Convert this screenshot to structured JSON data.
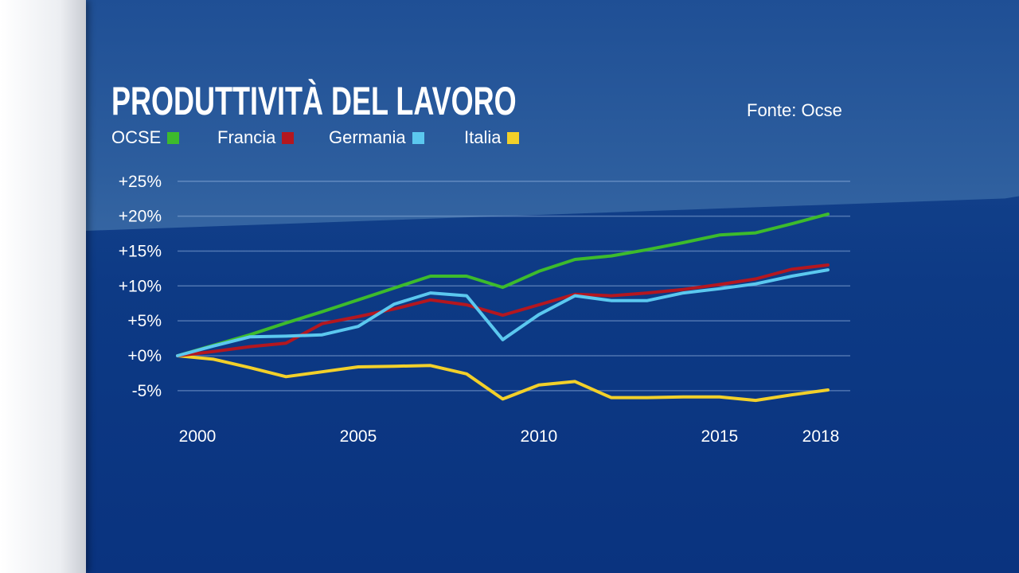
{
  "header": {
    "title": "PRODUTTIVITÀ DEL LAVORO",
    "source": "Fonte: Ocse"
  },
  "chart_data": {
    "type": "line",
    "title": "PRODUTTIVITÀ DEL LAVORO",
    "x": [
      2000,
      2001,
      2002,
      2003,
      2004,
      2005,
      2006,
      2007,
      2008,
      2009,
      2010,
      2011,
      2012,
      2013,
      2014,
      2015,
      2016,
      2017,
      2018
    ],
    "xticks": [
      {
        "v": 2000,
        "label": "2000"
      },
      {
        "v": 2005,
        "label": "2005"
      },
      {
        "v": 2010,
        "label": "2010"
      },
      {
        "v": 2015,
        "label": "2015"
      },
      {
        "v": 2018,
        "label": "2018"
      }
    ],
    "yticks": [
      {
        "v": 25,
        "label": "+25%"
      },
      {
        "v": 20,
        "label": "+20%"
      },
      {
        "v": 15,
        "label": "+15%"
      },
      {
        "v": 10,
        "label": "+10%"
      },
      {
        "v": 5,
        "label": "+5%"
      },
      {
        "v": 0,
        "label": "+0%"
      },
      {
        "v": -5,
        "label": "-5%"
      }
    ],
    "ylim": [
      -5,
      25
    ],
    "xlim": [
      2000,
      2018
    ],
    "grid": true,
    "legend_placement": "top-left",
    "series": [
      {
        "name": "OCSE",
        "color": "#3dbb2c",
        "values": [
          0,
          1.5,
          3.0,
          4.7,
          6.3,
          8.0,
          9.7,
          11.4,
          11.4,
          9.8,
          12.1,
          13.8,
          14.3,
          15.2,
          16.2,
          17.3,
          17.6,
          18.9,
          20.3
        ]
      },
      {
        "name": "Francia",
        "color": "#b4171f",
        "values": [
          0,
          0.6,
          1.3,
          1.8,
          4.6,
          5.6,
          6.7,
          8.0,
          7.3,
          5.8,
          7.3,
          8.8,
          8.6,
          9.0,
          9.5,
          10.2,
          11.0,
          12.4,
          13.0
        ]
      },
      {
        "name": "Germania",
        "color": "#5bc8ef",
        "values": [
          0,
          1.4,
          2.7,
          2.8,
          3.0,
          4.2,
          7.4,
          9.0,
          8.6,
          2.3,
          5.9,
          8.6,
          7.9,
          7.9,
          9.0,
          9.6,
          10.3,
          11.4,
          12.3
        ]
      },
      {
        "name": "Italia",
        "color": "#f2d02a",
        "values": [
          0,
          -0.5,
          -1.7,
          -3.0,
          -2.3,
          -1.6,
          -1.5,
          -1.4,
          -2.6,
          -6.2,
          -4.2,
          -3.7,
          -6.0,
          -6.0,
          -5.9,
          -5.9,
          -6.4,
          -5.6,
          -4.9
        ]
      }
    ]
  }
}
